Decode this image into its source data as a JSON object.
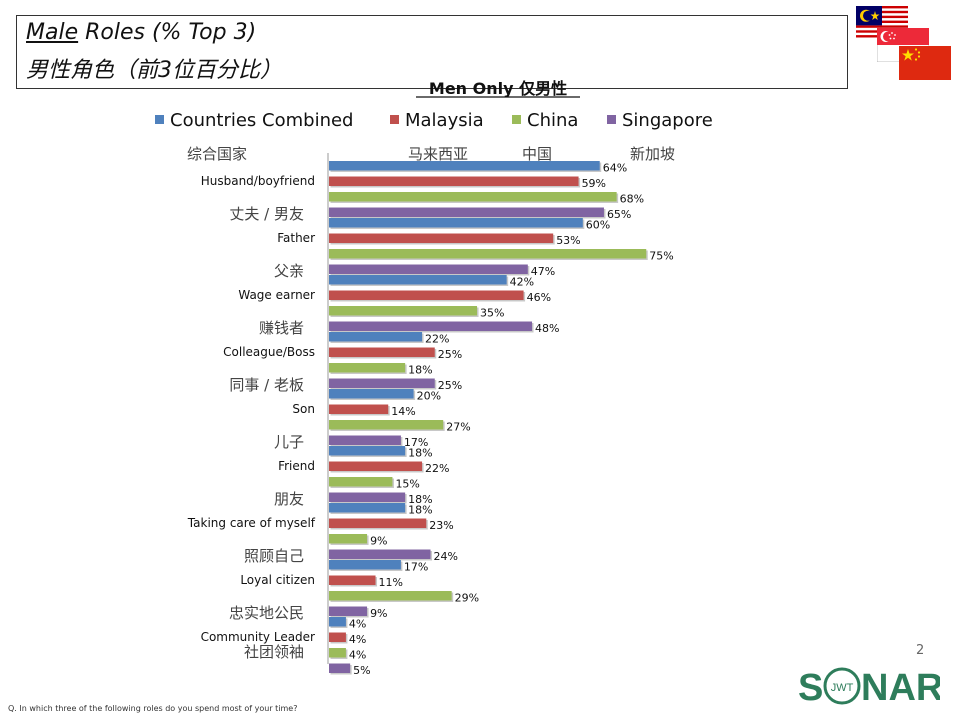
{
  "header": {
    "title_underlined": "Male",
    "title_rest": " Roles (% Top 3)",
    "title_zh": "男性角色（前3位百分比）"
  },
  "flags": [
    {
      "name": "malaysia-flag-icon"
    },
    {
      "name": "singapore-flag-icon"
    },
    {
      "name": "china-flag-icon"
    }
  ],
  "chart_data": {
    "type": "bar",
    "orientation": "horizontal",
    "title": "Men Only 仅男性",
    "categories": [
      "Husband/boyfriend",
      "Father",
      "Wage earner",
      "Colleague/Boss",
      "Son",
      "Friend",
      "Taking care of myself",
      "Loyal citizen",
      "Community Leader"
    ],
    "categories_zh": [
      "丈夫 / 男友",
      "父亲",
      "赚钱者",
      "同事 / 老板",
      "儿子",
      "朋友",
      "照顾自己",
      "忠实地公民",
      "社团领袖"
    ],
    "series": [
      {
        "name": "Countries Combined",
        "name_zh": "综合国家",
        "color": "#4f81bd",
        "values": [
          64,
          60,
          42,
          22,
          20,
          18,
          18,
          17,
          4
        ]
      },
      {
        "name": "Malaysia",
        "name_zh": "马来西亚",
        "color": "#c0504d",
        "values": [
          59,
          53,
          46,
          25,
          14,
          22,
          23,
          11,
          4
        ]
      },
      {
        "name": "China",
        "name_zh": "中国",
        "color": "#9bbb59",
        "values": [
          68,
          75,
          35,
          18,
          27,
          15,
          9,
          29,
          4
        ]
      },
      {
        "name": "Singapore",
        "name_zh": "新加坡",
        "color": "#8064a2",
        "values": [
          65,
          47,
          48,
          25,
          17,
          18,
          24,
          9,
          5
        ]
      }
    ],
    "value_suffix": "%",
    "xlim": [
      0,
      100
    ],
    "legend_position": "top",
    "grid": false
  },
  "page_number": "2",
  "footnote": "Q. In which three of the following roles do you spend most of your time?",
  "logo": {
    "text_left": "S",
    "text_right": "NAR",
    "ring_text": "JWT",
    "color": "#2e7d5b"
  }
}
